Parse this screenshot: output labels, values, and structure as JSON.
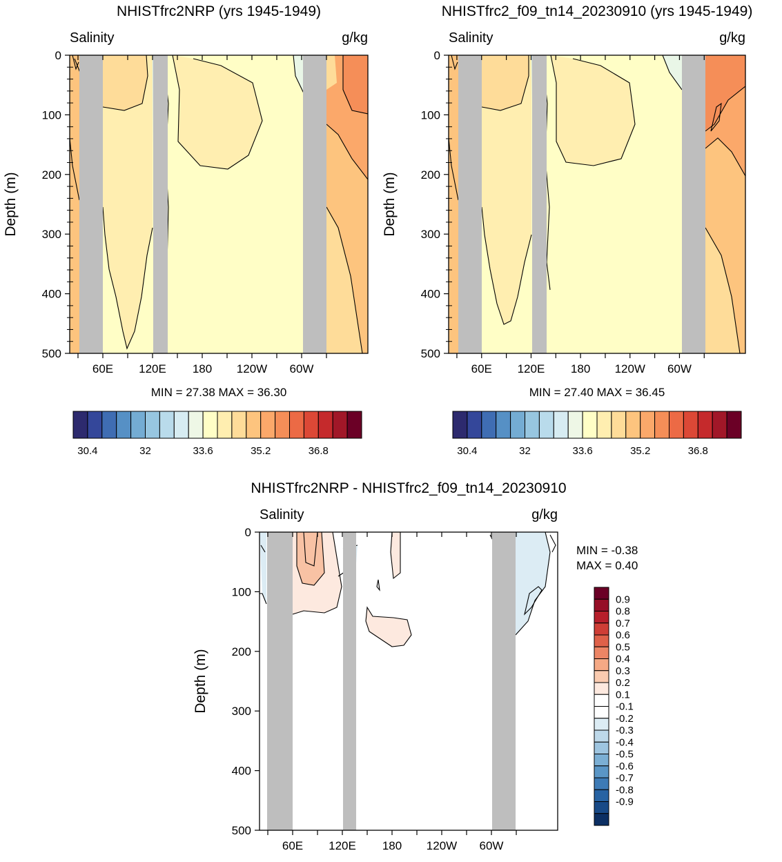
{
  "colors": {
    "land": "#bebebe",
    "cont": "#000000",
    "fill_c0": "#fffec6",
    "fill_c1": "#ffeeb0",
    "fill_c2": "#fedc99",
    "fill_c3": "#fdc47e",
    "fill_c4": "#fba86a",
    "fill_c5": "#f58e58",
    "fill_fresh1": "#e9f6e7",
    "fill_fresh2": "#c9e5f0",
    "fill_fresh3": "#8fc4df",
    "fill_fresh4": "#2d2a6e",
    "diff_pos1": "#fde9df",
    "diff_pos2": "#f8c2a4",
    "diff_neg1": "#dcecf4"
  },
  "common": {
    "ylabel": "Depth (m)",
    "variable": "Salinity",
    "units": "g/kg",
    "yticks": [
      "0",
      "100",
      "200",
      "300",
      "400",
      "500"
    ],
    "xticks": [
      "60E",
      "120E",
      "180",
      "120W",
      "60W"
    ]
  },
  "panels": [
    {
      "title": "NHISTfrc2NRP (yrs 1945-1949)",
      "minmax": "MIN =  27.38   MAX =  36.30"
    },
    {
      "title": "NHISTfrc2_f09_tn14_20230910 (yrs 1945-1949)",
      "minmax": "MIN =  27.40   MAX =  36.45"
    },
    {
      "title": "NHISTfrc2NRP - NHISTfrc2_f09_tn14_20230910",
      "min": "MIN =  -0.38",
      "max": "MAX =    0.40"
    }
  ],
  "colorbar_sal": {
    "colors": [
      "#2d2a6e",
      "#34479a",
      "#3f6db3",
      "#5690c5",
      "#74acd3",
      "#97c6e0",
      "#b9dbeb",
      "#d7ecf2",
      "#eef7e6",
      "#fffec6",
      "#ffeeb0",
      "#fedc99",
      "#fdc47e",
      "#fba86a",
      "#f58e58",
      "#ec6a45",
      "#dc4836",
      "#c52a2c",
      "#a11728",
      "#6b0026"
    ],
    "labels": [
      "30.4",
      "32",
      "33.6",
      "35.2",
      "36.8"
    ]
  },
  "colorbar_diff": {
    "colors": [
      "#6b0026",
      "#960f27",
      "#b71f2b",
      "#cf3e36",
      "#df6149",
      "#ec8565",
      "#f5a985",
      "#facbb0",
      "#fde9df",
      "#ffffff",
      "#ffffff",
      "#dcecf4",
      "#bed9ea",
      "#9ec5e0",
      "#7bafd4",
      "#5a96c6",
      "#3d7bb6",
      "#2763a3",
      "#184a87",
      "#0c2f63"
    ],
    "labels": [
      "0.9",
      "0.8",
      "0.7",
      "0.6",
      "0.5",
      "0.4",
      "0.3",
      "0.2",
      "0.1",
      "-0.1",
      "-0.2",
      "-0.3",
      "-0.4",
      "-0.5",
      "-0.6",
      "-0.7",
      "-0.8",
      "-0.9"
    ]
  },
  "chart_data": [
    {
      "type": "heatmap",
      "title": "NHISTfrc2NRP (yrs 1945-1949)",
      "variable": "Salinity",
      "units": "g/kg",
      "xlabel": "",
      "ylabel": "Depth (m)",
      "ylim": [
        500,
        0
      ],
      "xticks": [
        "60E",
        "120E",
        "180",
        "120W",
        "60W"
      ],
      "min": 27.38,
      "max": 36.3,
      "contour_levels": [
        30.4,
        30.8,
        31.2,
        31.6,
        32,
        32.4,
        32.8,
        33.2,
        33.6,
        34,
        34.4,
        34.8,
        35.2,
        35.6,
        36,
        36.4,
        36.8,
        37.2,
        37.6
      ]
    },
    {
      "type": "heatmap",
      "title": "NHISTfrc2_f09_tn14_20230910 (yrs 1945-1949)",
      "variable": "Salinity",
      "units": "g/kg",
      "xlabel": "",
      "ylabel": "Depth (m)",
      "ylim": [
        500,
        0
      ],
      "xticks": [
        "60E",
        "120E",
        "180",
        "120W",
        "60W"
      ],
      "min": 27.4,
      "max": 36.45,
      "contour_levels": [
        30.4,
        30.8,
        31.2,
        31.6,
        32,
        32.4,
        32.8,
        33.2,
        33.6,
        34,
        34.4,
        34.8,
        35.2,
        35.6,
        36,
        36.4,
        36.8,
        37.2,
        37.6
      ]
    },
    {
      "type": "heatmap",
      "title": "NHISTfrc2NRP - NHISTfrc2_f09_tn14_20230910",
      "variable": "Salinity",
      "units": "g/kg",
      "xlabel": "",
      "ylabel": "Depth (m)",
      "ylim": [
        500,
        0
      ],
      "xticks": [
        "60E",
        "120E",
        "180",
        "120W",
        "60W"
      ],
      "min": -0.38,
      "max": 0.4,
      "contour_levels": [
        -0.9,
        -0.8,
        -0.7,
        -0.6,
        -0.5,
        -0.4,
        -0.3,
        -0.2,
        -0.1,
        0.1,
        0.2,
        0.3,
        0.4,
        0.5,
        0.6,
        0.7,
        0.8,
        0.9
      ]
    }
  ]
}
